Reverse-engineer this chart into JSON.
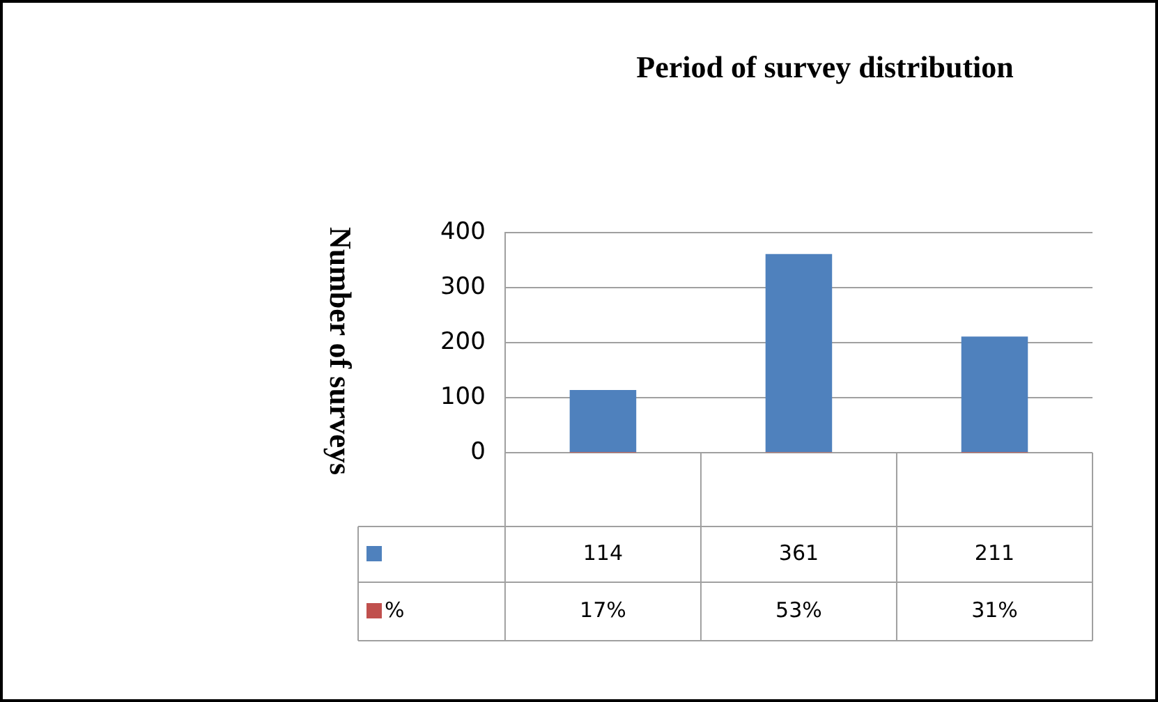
{
  "chart_data": {
    "type": "bar",
    "title": "Period of survey distribution",
    "ylabel": "Number of surveys",
    "categories": [
      null,
      null,
      null
    ],
    "series": [
      {
        "color": "#4f81bd",
        "values": [
          114,
          361,
          211
        ]
      },
      {
        "name": "%",
        "color": "#c0504d",
        "values": [
          0.17,
          0.53,
          0.31
        ],
        "value_labels": [
          "17%",
          "53%",
          "31%"
        ]
      }
    ],
    "ylim": [
      0,
      400
    ],
    "yticks": [
      0,
      100,
      200,
      300,
      400
    ],
    "grid": "y",
    "data_labels": true
  }
}
